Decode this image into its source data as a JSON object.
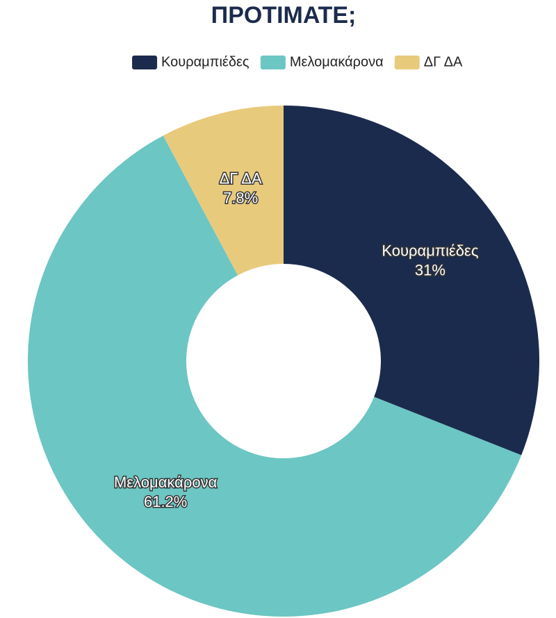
{
  "chart_data": {
    "type": "donut",
    "title": "ΠΡΟΤΙΜΑΤΕ;",
    "categories": [
      "Κουραμπιέδες",
      "Μελομακάρονα",
      "ΔΓ ΔΑ"
    ],
    "values": [
      31,
      61.2,
      7.8
    ],
    "value_labels": [
      "31%",
      "61.2%",
      "7.8%"
    ],
    "colors": [
      "#1b2b4d",
      "#6cc6c3",
      "#e8ca7d"
    ],
    "legend": "top"
  }
}
